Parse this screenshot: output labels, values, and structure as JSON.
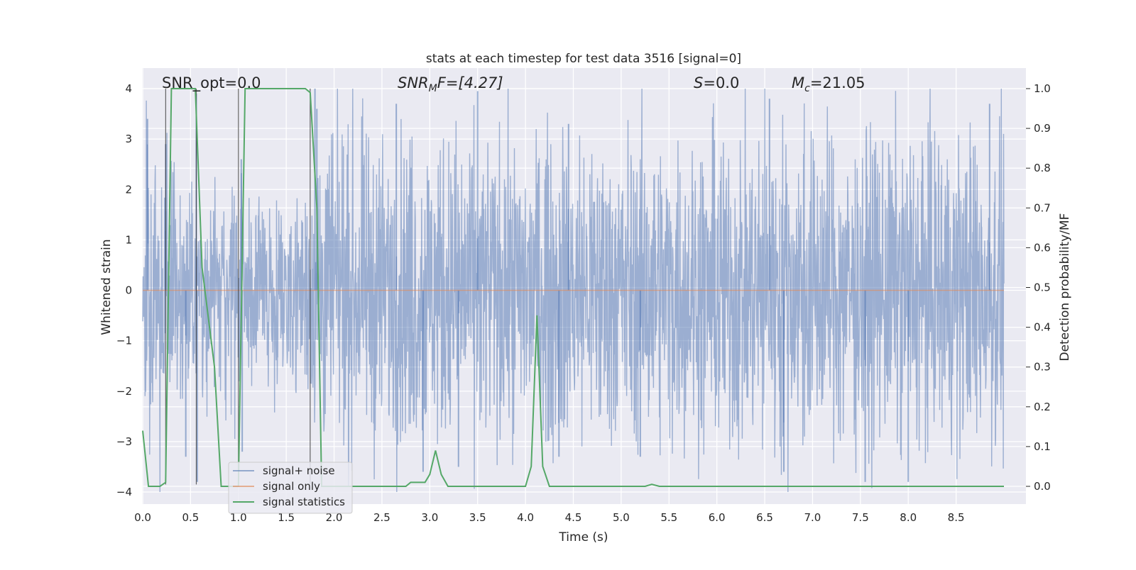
{
  "chart_data": {
    "type": "line",
    "title": "stats at each timestep for test data 3516 [signal=0]",
    "xlabel": "Time (s)",
    "ylabel_left": "Whitened strain",
    "ylabel_right": "Detection probability/MF",
    "xlim": [
      0.0,
      9.0
    ],
    "ylim_left": [
      -4.25,
      4.4
    ],
    "ylim_right": [
      -0.047,
      1.03
    ],
    "x_ticks": [
      0.0,
      0.5,
      1.0,
      1.5,
      2.0,
      2.5,
      3.0,
      3.5,
      4.0,
      4.5,
      5.0,
      5.5,
      6.0,
      6.5,
      7.0,
      7.5,
      8.0,
      8.5
    ],
    "x_tick_labels": [
      "0.0",
      "0.5",
      "1.0",
      "1.5",
      "2.0",
      "2.5",
      "3.0",
      "3.5",
      "4.0",
      "4.5",
      "5.0",
      "5.5",
      "6.0",
      "6.5",
      "7.0",
      "7.5",
      "8.0",
      "8.5"
    ],
    "y_left_ticks": [
      4,
      3,
      2,
      1,
      0,
      -1,
      -2,
      -3,
      -4
    ],
    "y_left_tick_labels": [
      "4",
      "3",
      "2",
      "1",
      "0",
      "−1",
      "−2",
      "−3",
      "−4"
    ],
    "y_right_ticks": [
      1.0,
      0.9,
      0.8,
      0.7,
      0.6,
      0.5,
      0.4,
      0.3,
      0.2,
      0.1,
      0.0
    ],
    "y_right_tick_labels": [
      "1.0",
      "0.9",
      "0.8",
      "0.7",
      "0.6",
      "0.5",
      "0.4",
      "0.3",
      "0.2",
      "0.1",
      "0.0"
    ],
    "grid": true,
    "legend_placement": "lower-left",
    "annotations": {
      "snr_opt": "SNR_opt=0.0",
      "snr_mf_prefix": "SNR",
      "snr_mf_sub": "M",
      "snr_mf_suffix": "F=[4.27]",
      "s_prefix": "S",
      "s_suffix": "=0.0",
      "mc_prefix": "M",
      "mc_sub": "c",
      "mc_suffix": "=21.05"
    },
    "vertical_markers_x": [
      0.24,
      0.56,
      1.0,
      1.75
    ],
    "series": [
      {
        "name": "signal+ noise",
        "color": "#4c72b0",
        "kind": "noise",
        "amplitude_profile": [
          [
            0.0,
            3.0
          ],
          [
            0.3,
            2.5
          ],
          [
            0.4,
            1.7
          ],
          [
            0.6,
            1.5
          ],
          [
            0.8,
            1.4
          ],
          [
            1.0,
            1.8
          ],
          [
            1.2,
            1.5
          ],
          [
            1.5,
            1.4
          ],
          [
            1.75,
            1.8
          ],
          [
            1.85,
            2.6
          ],
          [
            2.0,
            2.4
          ],
          [
            2.5,
            2.4
          ],
          [
            3.0,
            2.5
          ],
          [
            3.5,
            2.4
          ],
          [
            4.0,
            2.3
          ],
          [
            4.5,
            2.5
          ],
          [
            5.0,
            2.4
          ],
          [
            5.5,
            2.3
          ],
          [
            6.0,
            2.5
          ],
          [
            6.5,
            2.6
          ],
          [
            7.0,
            2.5
          ],
          [
            7.5,
            2.4
          ],
          [
            8.0,
            2.4
          ],
          [
            8.5,
            2.5
          ],
          [
            9.0,
            2.5
          ]
        ],
        "spikes": [
          [
            0.05,
            3.4
          ],
          [
            0.24,
            2.9
          ],
          [
            0.45,
            -3.3
          ],
          [
            0.56,
            3.9
          ],
          [
            0.57,
            -3.8
          ],
          [
            1.03,
            2.6
          ],
          [
            1.04,
            -3.2
          ],
          [
            1.8,
            4.0
          ],
          [
            1.82,
            3.6
          ],
          [
            2.65,
            3.7
          ],
          [
            2.93,
            -3.6
          ],
          [
            3.3,
            -3.5
          ],
          [
            3.5,
            3.95
          ],
          [
            4.35,
            -3.3
          ],
          [
            4.45,
            3.3
          ],
          [
            5.2,
            -3.3
          ],
          [
            6.55,
            3.8
          ],
          [
            6.7,
            -3.6
          ],
          [
            7.55,
            -3.8
          ],
          [
            8.0,
            -3.8
          ],
          [
            8.85,
            3.7
          ]
        ]
      },
      {
        "name": "signal only",
        "color": "#dd8452",
        "kind": "line",
        "x": [
          0.0,
          9.0
        ],
        "y": [
          0.0,
          0.0
        ]
      },
      {
        "name": "signal statistics",
        "color": "#55a868",
        "kind": "line",
        "axis": "right",
        "x": [
          0.0,
          0.06,
          0.18,
          0.24,
          0.3,
          0.55,
          0.62,
          0.75,
          0.82,
          0.95,
          1.0,
          1.07,
          1.3,
          1.5,
          1.7,
          1.75,
          1.82,
          1.87,
          2.0,
          2.5,
          2.75,
          2.8,
          2.95,
          3.0,
          3.06,
          3.12,
          3.19,
          3.3,
          3.5,
          3.8,
          4.0,
          4.06,
          4.12,
          4.18,
          4.25,
          4.5,
          5.0,
          5.25,
          5.32,
          5.4,
          6.0,
          7.0,
          8.0,
          9.0
        ],
        "y": [
          0.14,
          0.0,
          0.0,
          0.01,
          1.0,
          1.0,
          0.55,
          0.3,
          0.0,
          0.0,
          0.0,
          1.0,
          1.0,
          1.0,
          1.0,
          0.99,
          0.7,
          0.0,
          0.0,
          0.0,
          0.0,
          0.01,
          0.01,
          0.03,
          0.09,
          0.03,
          0.0,
          0.0,
          0.0,
          0.0,
          0.0,
          0.05,
          0.43,
          0.05,
          0.0,
          0.0,
          0.0,
          0.0,
          0.005,
          0.0,
          0.0,
          0.0,
          0.0,
          0.0
        ]
      }
    ]
  }
}
